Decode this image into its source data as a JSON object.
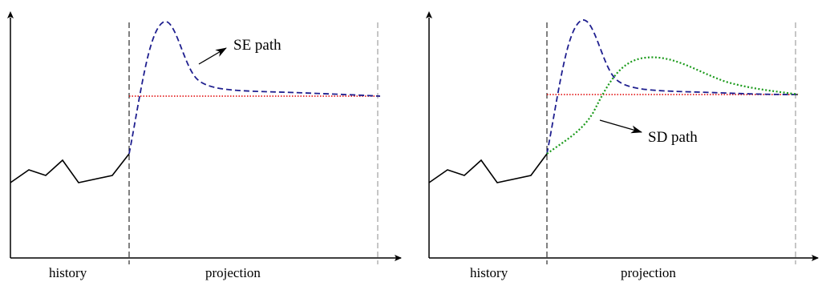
{
  "panels": [
    {
      "id": "left",
      "label_history": "history",
      "label_projection": "projection",
      "annotation": "SE path"
    },
    {
      "id": "right",
      "label_history": "history",
      "label_projection": "projection",
      "annotation": "SD path"
    }
  ],
  "colors": {
    "axis": "#000000",
    "history_line": "#000000",
    "divider_line": "#000000",
    "end_line": "#a0a0a0",
    "se_path": "#1f1f8f",
    "baseline": "#e00000",
    "sd_path": "#1a9a1a"
  }
}
